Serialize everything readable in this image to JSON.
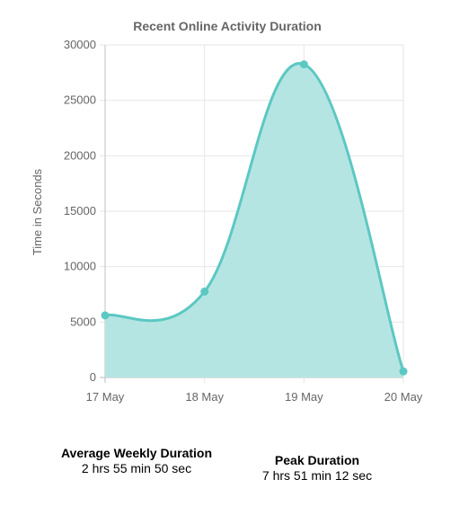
{
  "chart_data": {
    "type": "area",
    "title": "Recent Online Activity Duration",
    "ylabel": "Time in Seconds",
    "xlabel": "",
    "categories": [
      "17 May",
      "18 May",
      "19 May",
      "20 May"
    ],
    "values": [
      5600,
      7750,
      28250,
      550
    ],
    "ylim": [
      0,
      30000
    ],
    "yticks": [
      0,
      5000,
      10000,
      15000,
      20000,
      25000,
      30000
    ],
    "grid": true,
    "legend": "none",
    "colors": {
      "line": "#5cc8c2",
      "fill": "#b5e5e3",
      "grid": "#e6e6e6",
      "axis": "#bfbfbf",
      "text": "#666666"
    }
  },
  "stats": {
    "average_label": "Average Weekly Duration",
    "average_value": "2 hrs 55 min 50 sec",
    "peak_label": "Peak Duration",
    "peak_value": "7 hrs 51 min 12 sec"
  }
}
